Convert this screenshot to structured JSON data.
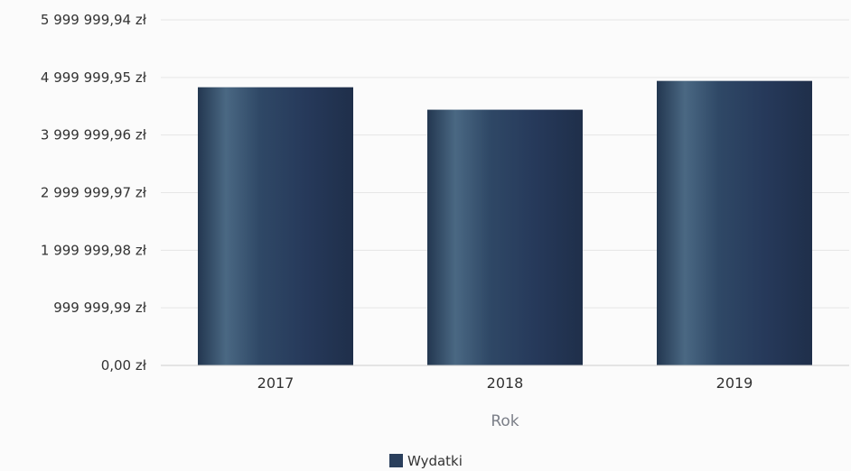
{
  "chart_data": {
    "type": "bar",
    "categories": [
      "2017",
      "2018",
      "2019"
    ],
    "series": [
      {
        "name": "Wydatki",
        "values": [
          4830000,
          4440000,
          4940000
        ]
      }
    ],
    "xlabel": "Rok",
    "ylabel": "",
    "ylim": [
      0,
      5999999.94
    ],
    "yticks": [
      0,
      999999.99,
      1999999.98,
      2999999.97,
      3999999.96,
      4999999.95,
      5999999.94
    ],
    "ytick_labels": [
      "0,00 zł",
      "999 999,99 zł",
      "1 999 999,98 zł",
      "2 999 999,97 zł",
      "3 999 999,96 zł",
      "4 999 999,95 zł",
      "5 999 999,94 zł"
    ],
    "grid": true,
    "legend_position": "bottom-center",
    "colors": {
      "bar": "#2a3f5c",
      "grid": "#e6e6e6",
      "axis": "#cccccc",
      "axis_title": "#7b7f88"
    }
  }
}
